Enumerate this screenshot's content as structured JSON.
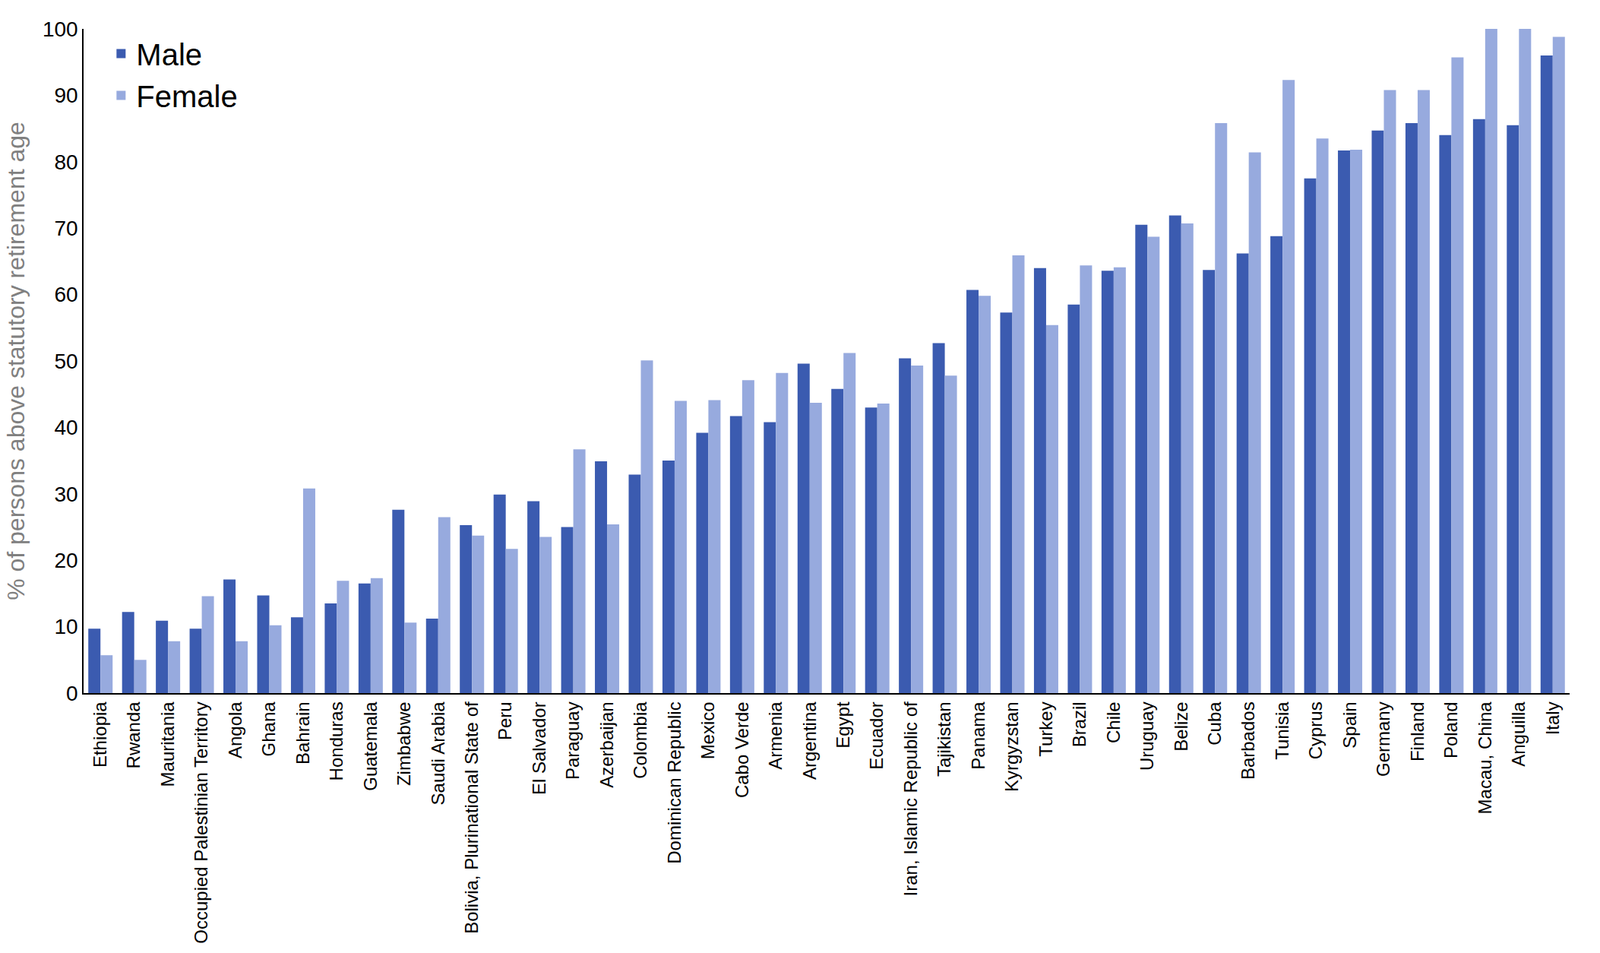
{
  "chart_data": {
    "type": "bar",
    "y_label": "% of persons above statutory retirement age",
    "categories": [
      "Ethiopia",
      "Rwanda",
      "Mauritania",
      "Occupied Palestinian Territory",
      "Angola",
      "Ghana",
      "Bahrain",
      "Honduras",
      "Guatemala",
      "Zimbabwe",
      "Saudi Arabia",
      "Bolivia, Plurinational State of",
      "Peru",
      "El Salvador",
      "Paraguay",
      "Azerbaijan",
      "Colombia",
      "Dominican Republic",
      "Mexico",
      "Cabo Verde",
      "Armenia",
      "Argentina",
      "Egypt",
      "Ecuador",
      "Iran, Islamic Republic of",
      "Tajikistan",
      "Panama",
      "Kyrgyzstan",
      "Turkey",
      "Brazil",
      "Chile",
      "Uruguay",
      "Belize",
      "Cuba",
      "Barbados",
      "Tunisia",
      "Cyprus",
      "Spain",
      "Germany",
      "Finland",
      "Poland",
      "Macau, China",
      "Anguilla",
      "Italy"
    ],
    "series": [
      {
        "name": "Male",
        "color": "#3b5bb0",
        "values": [
          9.7,
          12.2,
          10.9,
          9.7,
          17.1,
          14.7,
          11.4,
          13.5,
          16.5,
          27.6,
          11.2,
          25.3,
          29.9,
          28.9,
          25.0,
          34.9,
          32.9,
          35.0,
          39.2,
          41.7,
          40.8,
          49.6,
          45.8,
          43.0,
          50.4,
          52.7,
          60.7,
          57.3,
          64.0,
          58.5,
          63.6,
          70.5,
          71.9,
          63.7,
          66.2,
          68.8,
          77.5,
          81.7,
          84.7,
          85.8,
          84.0,
          86.4,
          85.5,
          96.0
        ]
      },
      {
        "name": "Female",
        "color": "#97aade",
        "values": [
          5.7,
          5.0,
          7.8,
          14.6,
          7.8,
          10.2,
          30.8,
          16.9,
          17.3,
          10.6,
          26.5,
          23.7,
          21.7,
          23.5,
          36.7,
          25.4,
          50.1,
          44.0,
          44.1,
          47.1,
          48.2,
          43.7,
          51.2,
          43.6,
          49.3,
          47.8,
          59.8,
          65.9,
          55.4,
          64.4,
          64.1,
          68.7,
          70.7,
          85.8,
          81.4,
          92.3,
          83.5,
          81.8,
          90.8,
          90.8,
          95.7,
          100,
          100,
          98.8
        ]
      }
    ],
    "ylim": [
      0,
      100
    ],
    "yticks": [
      0,
      10,
      20,
      30,
      40,
      50,
      60,
      70,
      80,
      90,
      100
    ],
    "grid": false,
    "legend": "upper left"
  }
}
